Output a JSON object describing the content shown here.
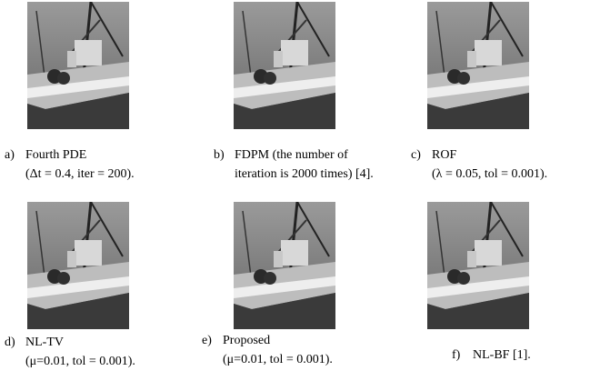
{
  "panels": [
    {
      "label": "a)",
      "line1": "Fourth PDE",
      "line2": "(Δt = 0.4, iter = 200)."
    },
    {
      "label": "b)",
      "line1": "FDPM (the number of",
      "line2": "iteration is 2000 times) [4]."
    },
    {
      "label": "c)",
      "line1": "ROF",
      "line2": "(λ = 0.05, tol = 0.001)."
    },
    {
      "label": "d)",
      "line1": "NL-TV",
      "line2": "(μ=0.01, tol = 0.001)."
    },
    {
      "label": "e)",
      "line1": "Proposed",
      "line2": "(μ=0.01, tol = 0.001)."
    },
    {
      "label": "f)",
      "line1": "NL-BF [1]."
    }
  ]
}
